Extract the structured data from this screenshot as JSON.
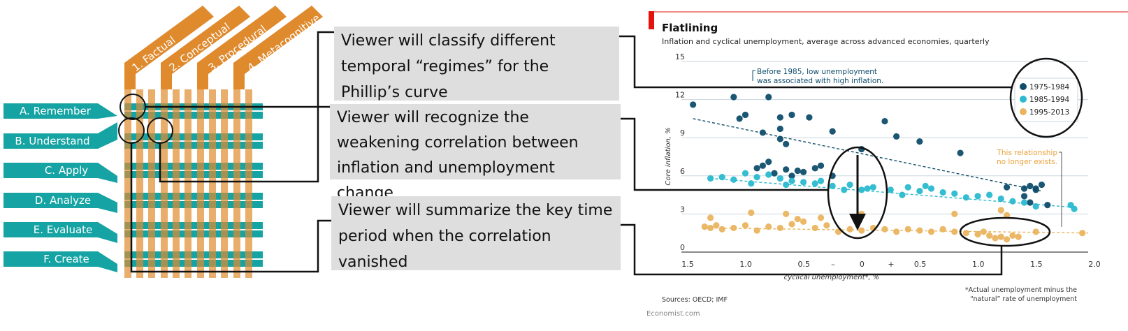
{
  "taxonomy": {
    "knowledge_dimensions": [
      "1. Factual",
      "2. Conceptual",
      "3. Procedural",
      "4. Metacognitive"
    ],
    "cognitive_levels": [
      "A. Remember",
      "B. Understand",
      "C. Apply",
      "D. Analyze",
      "E. Evaluate",
      "F. Create"
    ],
    "colors": {
      "teal": "#16a3a3",
      "orange": "#e08a2e",
      "light_orange": "#f0b27a"
    }
  },
  "objectives": [
    "Viewer will classify different temporal “regimes” for the Phillip’s curve",
    "Viewer will recognize the weakening correlation between inflation and unemployment change",
    "Viewer will summarize the key time period when the correlation vanished"
  ],
  "chart": {
    "title": "Flatlining",
    "subtitle": "Inflation and cyclical unemployment, average across advanced economies, quarterly",
    "ylabel": "Core inflation, %",
    "xlabel": "cyclical unemployment*, %",
    "y_ticks": [
      "15",
      "12",
      "9",
      "6",
      "3",
      "0"
    ],
    "x_ticks": [
      "1.5",
      "1.0",
      "0.5",
      "–",
      "0",
      "+",
      "0.5",
      "1.0",
      "1.5",
      "2.0"
    ],
    "annotation_left": [
      "Before 1985, low unemployment",
      "was associated with high inflation."
    ],
    "annotation_right": [
      "This relationship",
      "no longer exists."
    ],
    "legend": [
      "1975-1984",
      "1985-1994",
      "1995-2013"
    ],
    "sources": "Sources: OECD; IMF",
    "footnote": [
      "*Actual unemployment minus the",
      "“natural” rate of unemployment"
    ],
    "credit": "Economist.com",
    "accent_color": "#e3120b"
  },
  "chart_data": {
    "type": "scatter",
    "title": "Flatlining",
    "xlabel": "cyclical unemployment*, %",
    "ylabel": "Core inflation, %",
    "xlim": [
      -1.5,
      2.0
    ],
    "ylim": [
      0,
      15
    ],
    "series": [
      {
        "name": "1975-1984",
        "color": "#0f4d6b",
        "points": [
          [
            -1.4,
            11.6
          ],
          [
            -1.05,
            12.2
          ],
          [
            -1.0,
            10.5
          ],
          [
            -0.95,
            10.8
          ],
          [
            -0.75,
            12.2
          ],
          [
            -0.65,
            10.6
          ],
          [
            -0.55,
            10.8
          ],
          [
            -0.4,
            10.6
          ],
          [
            -0.2,
            9.5
          ],
          [
            0.25,
            10.3
          ],
          [
            0.35,
            9.1
          ],
          [
            0.55,
            8.7
          ],
          [
            0.9,
            7.8
          ],
          [
            -0.8,
            9.4
          ],
          [
            -0.65,
            9.7
          ],
          [
            -0.6,
            8.5
          ],
          [
            -0.65,
            8.9
          ],
          [
            -0.7,
            6.2
          ],
          [
            -0.6,
            6.5
          ],
          [
            -0.55,
            6.0
          ],
          [
            -0.5,
            6.4
          ],
          [
            -0.45,
            6.3
          ],
          [
            -0.35,
            6.6
          ],
          [
            -0.3,
            6.8
          ],
          [
            -0.2,
            6.0
          ],
          [
            0.05,
            8.1
          ],
          [
            1.3,
            5.1
          ],
          [
            1.45,
            5.0
          ],
          [
            1.5,
            5.2
          ],
          [
            1.55,
            5.0
          ],
          [
            1.6,
            5.3
          ],
          [
            1.55,
            4.9
          ],
          [
            1.45,
            4.4
          ],
          [
            1.5,
            3.9
          ],
          [
            1.65,
            3.7
          ],
          [
            -0.8,
            6.8
          ],
          [
            -0.75,
            7.1
          ],
          [
            -0.85,
            6.6
          ]
        ]
      },
      {
        "name": "1985-1994",
        "color": "#2ab9cf",
        "points": [
          [
            -1.25,
            5.8
          ],
          [
            -1.15,
            5.9
          ],
          [
            -1.05,
            5.7
          ],
          [
            -0.95,
            6.2
          ],
          [
            -0.9,
            5.4
          ],
          [
            -0.85,
            5.9
          ],
          [
            -0.75,
            6.1
          ],
          [
            -0.65,
            5.8
          ],
          [
            -0.55,
            5.6
          ],
          [
            -0.45,
            5.5
          ],
          [
            -0.35,
            5.4
          ],
          [
            -0.2,
            5.2
          ],
          [
            -0.05,
            5.3
          ],
          [
            0.05,
            4.9
          ],
          [
            0.1,
            5.0
          ],
          [
            0.15,
            5.1
          ],
          [
            0.3,
            4.9
          ],
          [
            0.45,
            5.1
          ],
          [
            0.55,
            4.8
          ],
          [
            0.65,
            5.0
          ],
          [
            0.75,
            4.7
          ],
          [
            0.85,
            4.6
          ],
          [
            0.95,
            4.3
          ],
          [
            1.05,
            4.4
          ],
          [
            1.15,
            4.5
          ],
          [
            1.25,
            4.2
          ],
          [
            1.35,
            4.0
          ],
          [
            1.45,
            3.9
          ],
          [
            1.55,
            3.6
          ],
          [
            1.85,
            3.7
          ],
          [
            1.88,
            3.4
          ],
          [
            0.6,
            5.2
          ],
          [
            0.4,
            4.5
          ],
          [
            -0.6,
            5.3
          ],
          [
            -0.3,
            5.6
          ],
          [
            -0.1,
            4.9
          ]
        ]
      },
      {
        "name": "1995-2013",
        "color": "#e9b45e",
        "points": [
          [
            -1.3,
            2.0
          ],
          [
            -1.25,
            1.9
          ],
          [
            -1.2,
            2.1
          ],
          [
            -1.15,
            1.8
          ],
          [
            -1.05,
            1.9
          ],
          [
            -0.95,
            2.1
          ],
          [
            -0.85,
            1.7
          ],
          [
            -0.75,
            2.0
          ],
          [
            -0.65,
            1.9
          ],
          [
            -0.55,
            2.2
          ],
          [
            -0.45,
            2.4
          ],
          [
            -0.35,
            1.9
          ],
          [
            -0.25,
            2.1
          ],
          [
            -0.15,
            1.6
          ],
          [
            -0.05,
            1.8
          ],
          [
            0.05,
            1.7
          ],
          [
            0.15,
            1.9
          ],
          [
            0.25,
            1.8
          ],
          [
            0.35,
            1.6
          ],
          [
            0.45,
            1.8
          ],
          [
            0.55,
            1.7
          ],
          [
            0.65,
            1.6
          ],
          [
            0.75,
            1.8
          ],
          [
            0.85,
            1.6
          ],
          [
            0.95,
            1.5
          ],
          [
            1.05,
            1.4
          ],
          [
            1.1,
            1.6
          ],
          [
            1.15,
            1.3
          ],
          [
            1.2,
            1.1
          ],
          [
            1.25,
            1.2
          ],
          [
            1.3,
            1.0
          ],
          [
            1.35,
            1.3
          ],
          [
            1.4,
            1.2
          ],
          [
            1.55,
            1.6
          ],
          [
            1.95,
            1.5
          ],
          [
            -0.9,
            3.1
          ],
          [
            -0.5,
            2.6
          ],
          [
            -0.3,
            2.7
          ],
          [
            0.05,
            3.0
          ],
          [
            0.85,
            3.0
          ],
          [
            1.25,
            3.3
          ],
          [
            1.3,
            2.9
          ],
          [
            -1.25,
            2.7
          ],
          [
            -0.6,
            3.0
          ]
        ]
      }
    ],
    "trend_lines": [
      {
        "series": "1975-1984",
        "from": [
          -1.4,
          10.5
        ],
        "to": [
          1.6,
          4.8
        ]
      },
      {
        "series": "1985-1994",
        "from": [
          -1.25,
          5.8
        ],
        "to": [
          1.9,
          3.5
        ]
      },
      {
        "series": "1995-2013",
        "from": [
          -1.3,
          1.9
        ],
        "to": [
          2.0,
          1.5
        ]
      }
    ]
  }
}
